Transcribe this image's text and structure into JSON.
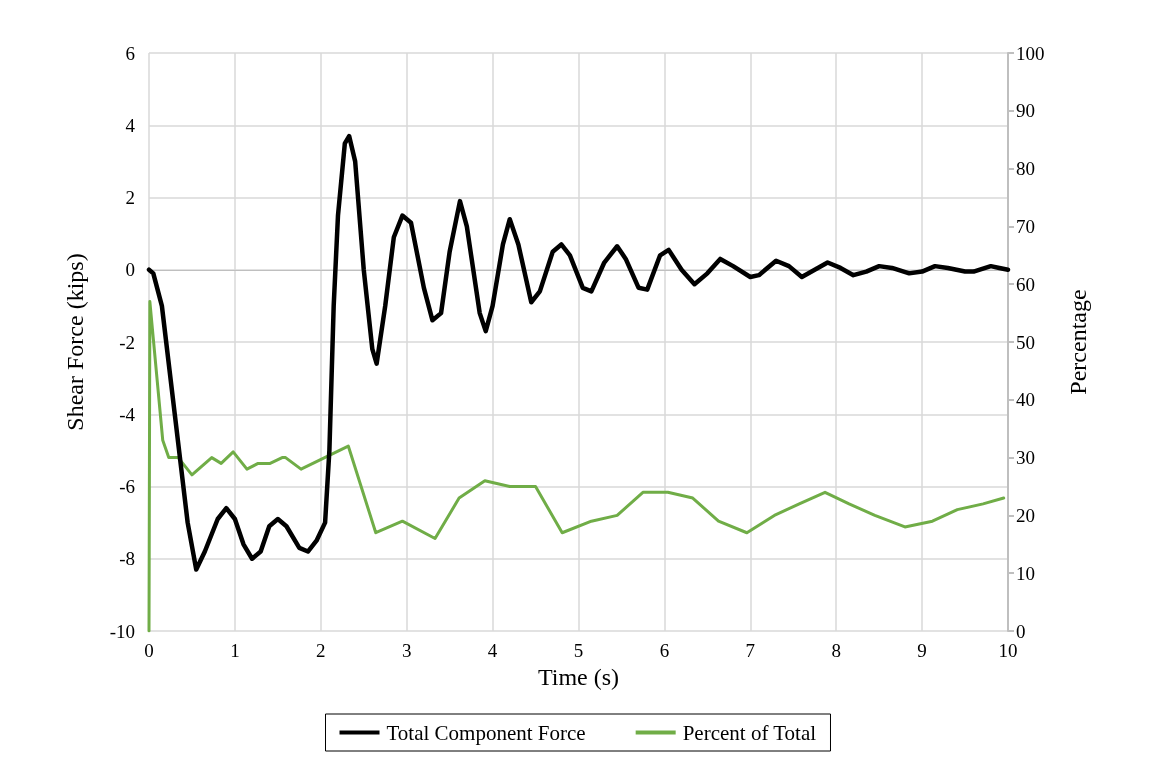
{
  "chart_data": {
    "type": "line",
    "xlabel": "Time (s)",
    "ylabel": "Shear Force (kips)",
    "y2label": "Percentage",
    "xlim": [
      0,
      10
    ],
    "xticks": [
      0,
      1,
      2,
      3,
      4,
      5,
      6,
      7,
      8,
      9,
      10
    ],
    "ylim": [
      -10,
      6
    ],
    "yticks": [
      -10,
      -8,
      -6,
      -4,
      -2,
      0,
      2,
      4,
      6
    ],
    "y2lim": [
      0,
      100
    ],
    "y2ticks": [
      0,
      10,
      20,
      30,
      40,
      50,
      60,
      70,
      80,
      90,
      100
    ],
    "grid": true,
    "legend": "bottom",
    "marker": "none",
    "series": [
      {
        "name": "Total Component Force",
        "color": "#000000",
        "x": [
          0,
          0.05,
          0.15,
          0.3,
          0.45,
          0.55,
          0.65,
          0.8,
          0.9,
          1.0,
          1.1,
          1.2,
          1.3,
          1.4,
          1.5,
          1.6,
          1.75,
          1.85,
          1.95,
          2.05,
          2.1,
          2.15,
          2.2,
          2.28,
          2.33,
          2.4,
          2.5,
          2.6,
          2.65,
          2.75,
          2.85,
          2.95,
          3.05,
          3.2,
          3.3,
          3.4,
          3.5,
          3.62,
          3.7,
          3.85,
          3.92,
          4.0,
          4.12,
          4.2,
          4.3,
          4.45,
          4.55,
          4.7,
          4.8,
          4.9,
          5.05,
          5.15,
          5.3,
          5.45,
          5.55,
          5.7,
          5.8,
          5.95,
          6.05,
          6.2,
          6.35,
          6.5,
          6.65,
          6.8,
          7.0,
          7.1,
          7.3,
          7.45,
          7.6,
          7.75,
          7.9,
          8.05,
          8.2,
          8.35,
          8.5,
          8.65,
          8.85,
          9.0,
          9.15,
          9.3,
          9.5,
          9.6,
          9.8,
          9.9,
          10
        ],
        "values": [
          0,
          -0.1,
          -1,
          -4,
          -7,
          -8.3,
          -7.8,
          -6.9,
          -6.6,
          -6.9,
          -7.6,
          -8.0,
          -7.8,
          -7.1,
          -6.9,
          -7.1,
          -7.7,
          -7.8,
          -7.5,
          -7.0,
          -5,
          -1,
          1.5,
          3.5,
          3.7,
          3,
          0,
          -2.2,
          -2.6,
          -1,
          0.9,
          1.5,
          1.3,
          -0.5,
          -1.4,
          -1.2,
          0.5,
          1.9,
          1.2,
          -1.2,
          -1.7,
          -1,
          0.7,
          1.4,
          0.7,
          -0.9,
          -0.6,
          0.5,
          0.7,
          0.4,
          -0.5,
          -0.6,
          0.2,
          0.65,
          0.3,
          -0.5,
          -0.55,
          0.4,
          0.55,
          0,
          -0.4,
          -0.1,
          0.3,
          0.1,
          -0.2,
          -0.15,
          0.25,
          0.1,
          -0.2,
          0,
          0.2,
          0.05,
          -0.15,
          -0.05,
          0.1,
          0.05,
          -0.1,
          -0.05,
          0.1,
          0.05,
          -0.05,
          -0.05,
          0.1,
          0.05,
          0
        ]
      },
      {
        "name": "Percent of Total",
        "color": "#70ad47",
        "axis": "y2",
        "x": [
          0,
          0.01,
          0.16,
          0.23,
          0.34,
          0.5,
          0.73,
          0.84,
          0.98,
          1.14,
          1.27,
          1.41,
          1.55,
          1.59,
          1.77,
          2.32,
          2.64,
          2.95,
          3.33,
          3.61,
          3.91,
          4.2,
          4.5,
          4.81,
          5.15,
          5.45,
          5.75,
          6.04,
          6.33,
          6.63,
          6.96,
          7.28,
          7.57,
          7.87,
          8.15,
          8.45,
          8.8,
          9.12,
          9.41,
          9.71,
          9.95
        ],
        "values": [
          0,
          57,
          33,
          30,
          30,
          27,
          30,
          29,
          31,
          28,
          29,
          29,
          30,
          30,
          28,
          32,
          17,
          19,
          16,
          23,
          26,
          25,
          25,
          17,
          19,
          20,
          24,
          24,
          23,
          19,
          17,
          20,
          22,
          24,
          22,
          20,
          18,
          19,
          21,
          22,
          23
        ]
      }
    ]
  }
}
